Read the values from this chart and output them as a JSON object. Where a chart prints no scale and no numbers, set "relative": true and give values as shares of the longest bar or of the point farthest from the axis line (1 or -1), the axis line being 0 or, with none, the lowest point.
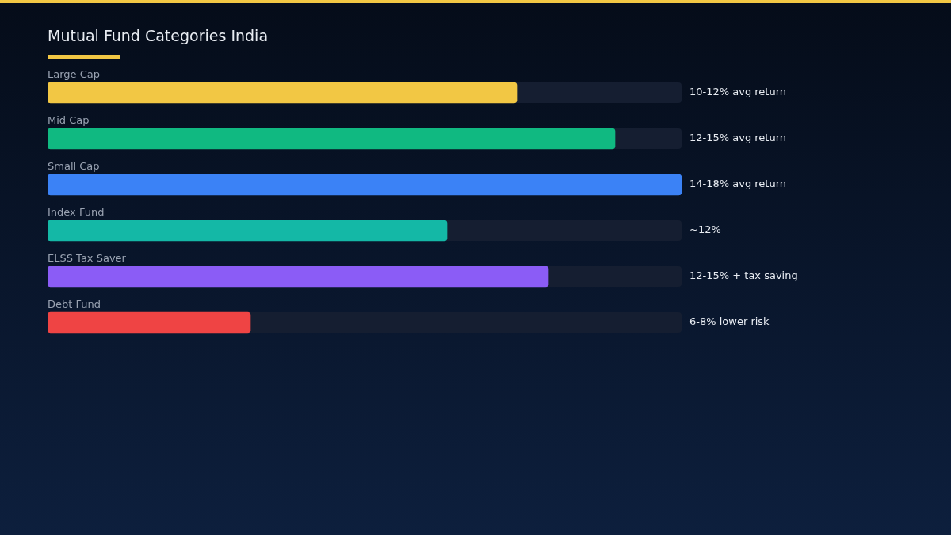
{
  "chart_data": {
    "type": "bar",
    "orientation": "horizontal",
    "relative": true,
    "title": "Mutual Fund Categories India",
    "categories": [
      "Large Cap",
      "Mid Cap",
      "Small Cap",
      "Index Fund",
      "ELSS Tax Saver",
      "Debt Fund"
    ],
    "values": [
      0.74,
      0.895,
      1,
      0.63,
      0.79,
      0.32
    ],
    "colors": [
      "#f2c744",
      "#10b981",
      "#3b82f6",
      "#14b8a6",
      "#8b5cf6",
      "#ef4444"
    ],
    "annotations": [
      "10-12% avg return",
      "12-15% avg return",
      "14-18% avg return",
      "~12%",
      "12-15% + tax saving",
      "6-8% lower risk"
    ],
    "legend": false
  }
}
